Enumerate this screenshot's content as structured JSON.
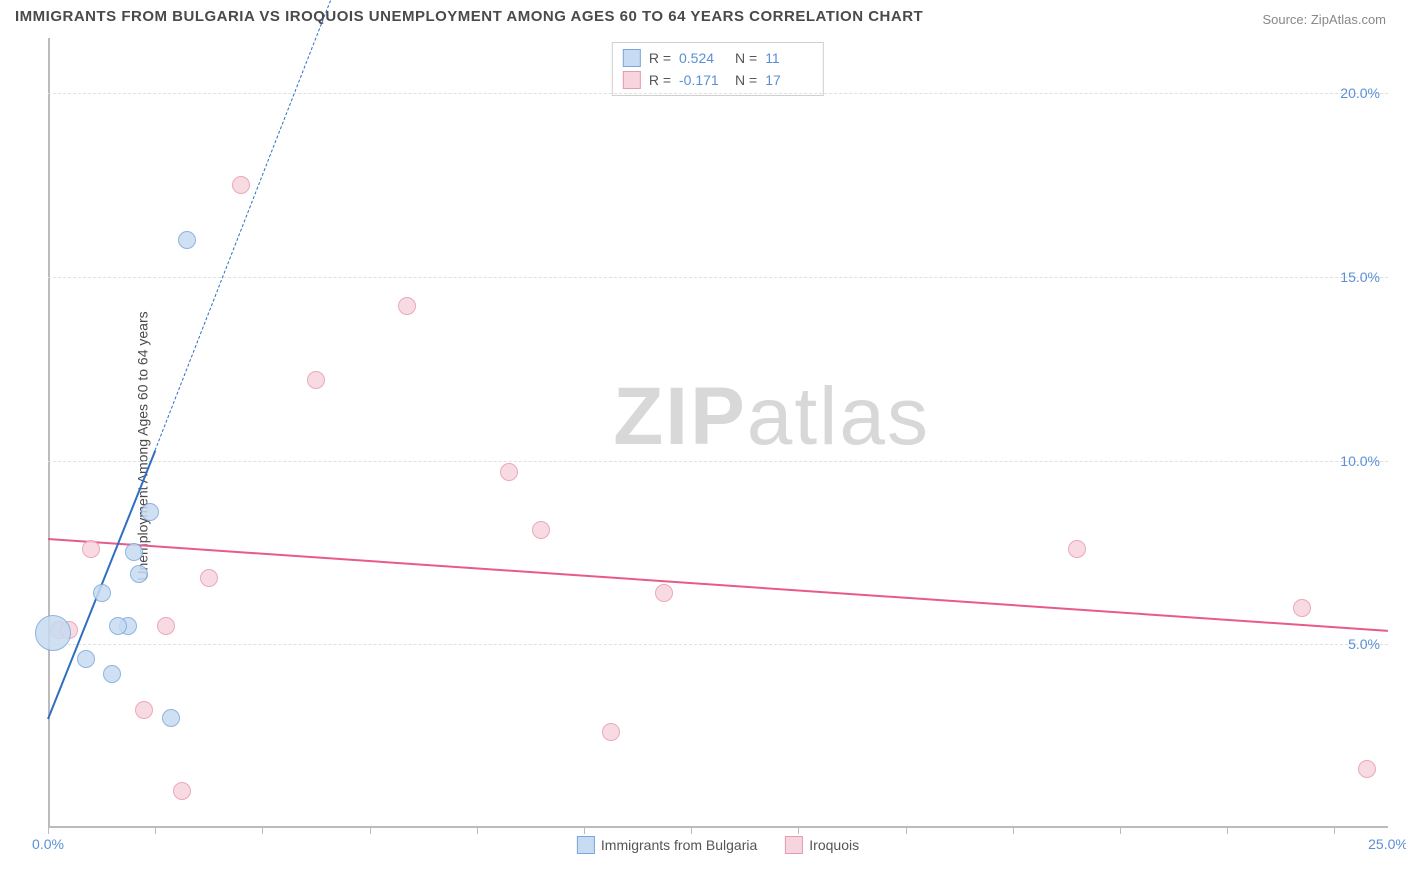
{
  "title": "IMMIGRANTS FROM BULGARIA VS IROQUOIS UNEMPLOYMENT AMONG AGES 60 TO 64 YEARS CORRELATION CHART",
  "source": "Source: ZipAtlas.com",
  "ylabel": "Unemployment Among Ages 60 to 64 years",
  "watermark_a": "ZIP",
  "watermark_b": "atlas",
  "chart": {
    "type": "scatter",
    "xlim": [
      0,
      25
    ],
    "ylim": [
      0,
      21.5
    ],
    "x_ticks": [
      0,
      2,
      4,
      6,
      8,
      10,
      12,
      14,
      16,
      18,
      20,
      22,
      24
    ],
    "x_labels_shown": {
      "0": "0.0%",
      "25": "25.0%"
    },
    "y_gridlines": [
      5,
      10,
      15,
      20
    ],
    "y_labels": {
      "5": "5.0%",
      "10": "10.0%",
      "15": "15.0%",
      "20": "20.0%"
    },
    "background_color": "#ffffff",
    "grid_color": "#e0e0e0",
    "axis_color": "#bbbbbb",
    "tick_label_color": "#5a8fd6"
  },
  "series": {
    "bulgaria": {
      "label": "Immigrants from Bulgaria",
      "fill": "#c7dbf2",
      "stroke": "#7aa7db",
      "line_color": "#2e6fc0",
      "R": "0.524",
      "N": "11",
      "marker_radius": 9,
      "points": [
        {
          "x": 0.1,
          "y": 5.3,
          "r": 18
        },
        {
          "x": 0.7,
          "y": 4.6
        },
        {
          "x": 1.0,
          "y": 6.4
        },
        {
          "x": 1.2,
          "y": 4.2
        },
        {
          "x": 1.5,
          "y": 5.5
        },
        {
          "x": 1.7,
          "y": 6.9
        },
        {
          "x": 1.9,
          "y": 8.6
        },
        {
          "x": 2.3,
          "y": 3.0
        },
        {
          "x": 2.6,
          "y": 16.0
        },
        {
          "x": 1.6,
          "y": 7.5
        },
        {
          "x": 1.3,
          "y": 5.5
        }
      ],
      "trend": {
        "x1": 0.0,
        "y1": 3.0,
        "x2": 2.0,
        "y2": 10.3,
        "dash_to_x": 7.0,
        "dash_to_y": 29.0
      }
    },
    "iroquois": {
      "label": "Iroquois",
      "fill": "#f7d5de",
      "stroke": "#e79ab0",
      "line_color": "#e75a8a",
      "R": "-0.171",
      "N": "17",
      "marker_radius": 9,
      "points": [
        {
          "x": 0.2,
          "y": 5.4
        },
        {
          "x": 0.4,
          "y": 5.4
        },
        {
          "x": 0.8,
          "y": 7.6
        },
        {
          "x": 1.8,
          "y": 3.2
        },
        {
          "x": 2.2,
          "y": 5.5
        },
        {
          "x": 2.5,
          "y": 1.0
        },
        {
          "x": 3.0,
          "y": 6.8
        },
        {
          "x": 3.6,
          "y": 17.5
        },
        {
          "x": 5.0,
          "y": 12.2
        },
        {
          "x": 6.7,
          "y": 14.2
        },
        {
          "x": 8.6,
          "y": 9.7
        },
        {
          "x": 9.2,
          "y": 8.1
        },
        {
          "x": 10.5,
          "y": 2.6
        },
        {
          "x": 11.5,
          "y": 6.4
        },
        {
          "x": 19.2,
          "y": 7.6
        },
        {
          "x": 23.4,
          "y": 6.0
        },
        {
          "x": 24.6,
          "y": 1.6
        }
      ],
      "trend": {
        "x1": 0.0,
        "y1": 7.9,
        "x2": 25.0,
        "y2": 5.4
      }
    }
  },
  "legend_top": [
    {
      "series": "bulgaria"
    },
    {
      "series": "iroquois"
    }
  ],
  "legend_bottom": [
    {
      "series": "bulgaria"
    },
    {
      "series": "iroquois"
    }
  ]
}
